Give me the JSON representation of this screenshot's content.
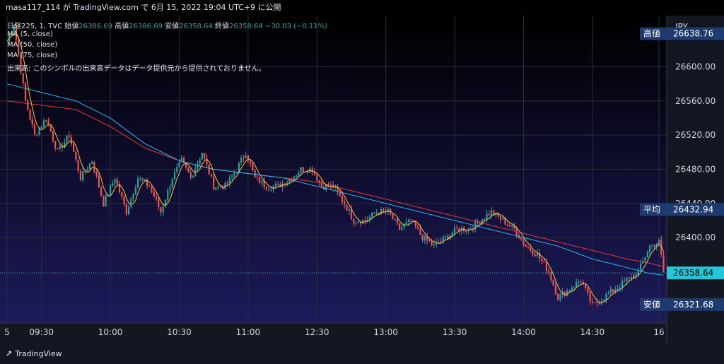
{
  "topbar": {
    "text": "masa117_114 が TradingView.com で 6月 15, 2022 19:04 UTC+9 に公開"
  },
  "legend": {
    "symbol": "日経225, 1, TVC",
    "open_label": "始値",
    "open": "26386.69",
    "high_label": "高値",
    "high": "26386.69",
    "low_label": "安値",
    "low": "26358.64",
    "close_label": "終値",
    "close": "26358.64",
    "change": "−30.03 (−0.11%)",
    "ma5": "MA (5, close)",
    "ma50": "MA (50, close)",
    "ma75": "MA (75, close)",
    "volume_note": "出来高: このシンボルの出来高データはデータ提供元から提供されておりません。"
  },
  "colors": {
    "background_top": "#000000",
    "background_bottom": "#1c1a5a",
    "up": "#26a69a",
    "down": "#ef5350",
    "ma5": "#f5c542",
    "ma50": "#29b6f6",
    "ma75": "#e53935",
    "label_bg": "#1e3a6e",
    "price_label_bg": "#26c6da"
  },
  "footer": {
    "logo": "TradingView",
    "logo_icon": "tradingview-logo-icon"
  },
  "chart_data": {
    "type": "line",
    "currency": "JPY",
    "ylim": [
      26300,
      26660
    ],
    "yticks": [
      "26600.00",
      "26560.00",
      "26520.00",
      "26480.00",
      "26440.00",
      "26400.00"
    ],
    "xticks": [
      {
        "label": "5",
        "t": 0
      },
      {
        "label": "09:30",
        "t": 15
      },
      {
        "label": "10:00",
        "t": 45
      },
      {
        "label": "10:30",
        "t": 75
      },
      {
        "label": "11:00",
        "t": 105
      },
      {
        "label": "12:30",
        "t": 135
      },
      {
        "label": "13:00",
        "t": 165
      },
      {
        "label": "13:30",
        "t": 195
      },
      {
        "label": "14:00",
        "t": 225
      },
      {
        "label": "14:30",
        "t": 255
      },
      {
        "label": "16",
        "t": 284
      }
    ],
    "price_key_points": [
      [
        0,
        26630
      ],
      [
        3,
        26650
      ],
      [
        8,
        26560
      ],
      [
        12,
        26520
      ],
      [
        17,
        26540
      ],
      [
        22,
        26500
      ],
      [
        27,
        26520
      ],
      [
        32,
        26470
      ],
      [
        37,
        26490
      ],
      [
        42,
        26440
      ],
      [
        47,
        26470
      ],
      [
        52,
        26430
      ],
      [
        57,
        26470
      ],
      [
        62,
        26460
      ],
      [
        67,
        26430
      ],
      [
        72,
        26470
      ],
      [
        76,
        26490
      ],
      [
        80,
        26470
      ],
      [
        85,
        26500
      ],
      [
        90,
        26460
      ],
      [
        95,
        26460
      ],
      [
        100,
        26480
      ],
      [
        104,
        26500
      ],
      [
        108,
        26470
      ],
      [
        113,
        26460
      ],
      [
        118,
        26460
      ],
      [
        124,
        26470
      ],
      [
        128,
        26480
      ],
      [
        133,
        26480
      ],
      [
        137,
        26460
      ],
      [
        142,
        26460
      ],
      [
        147,
        26440
      ],
      [
        151,
        26420
      ],
      [
        156,
        26420
      ],
      [
        161,
        26430
      ],
      [
        166,
        26430
      ],
      [
        171,
        26410
      ],
      [
        176,
        26420
      ],
      [
        181,
        26400
      ],
      [
        186,
        26390
      ],
      [
        191,
        26400
      ],
      [
        196,
        26410
      ],
      [
        201,
        26410
      ],
      [
        206,
        26420
      ],
      [
        211,
        26430
      ],
      [
        216,
        26420
      ],
      [
        221,
        26410
      ],
      [
        226,
        26390
      ],
      [
        231,
        26380
      ],
      [
        236,
        26360
      ],
      [
        240,
        26330
      ],
      [
        245,
        26340
      ],
      [
        250,
        26350
      ],
      [
        255,
        26320
      ],
      [
        260,
        26330
      ],
      [
        265,
        26340
      ],
      [
        270,
        26350
      ],
      [
        275,
        26360
      ],
      [
        280,
        26390
      ],
      [
        284,
        26395
      ],
      [
        286,
        26360
      ]
    ],
    "ma50_key_points": [
      [
        0,
        26580
      ],
      [
        15,
        26570
      ],
      [
        30,
        26560
      ],
      [
        45,
        26540
      ],
      [
        60,
        26510
      ],
      [
        75,
        26490
      ],
      [
        90,
        26480
      ],
      [
        105,
        26475
      ],
      [
        120,
        26470
      ],
      [
        135,
        26460
      ],
      [
        150,
        26450
      ],
      [
        165,
        26440
      ],
      [
        180,
        26430
      ],
      [
        195,
        26420
      ],
      [
        210,
        26410
      ],
      [
        225,
        26400
      ],
      [
        240,
        26390
      ],
      [
        255,
        26375
      ],
      [
        270,
        26365
      ],
      [
        280,
        26358
      ],
      [
        286,
        26356
      ]
    ],
    "ma75_key_points": [
      [
        0,
        26560
      ],
      [
        15,
        26555
      ],
      [
        30,
        26550
      ],
      [
        45,
        26530
      ],
      [
        60,
        26505
      ],
      [
        75,
        26490
      ],
      [
        90,
        26480
      ],
      [
        105,
        26475
      ],
      [
        120,
        26470
      ],
      [
        135,
        26465
      ],
      [
        150,
        26455
      ],
      [
        165,
        26445
      ],
      [
        180,
        26435
      ],
      [
        195,
        26425
      ],
      [
        210,
        26415
      ],
      [
        225,
        26405
      ],
      [
        240,
        26395
      ],
      [
        255,
        26385
      ],
      [
        270,
        26375
      ],
      [
        280,
        26370
      ],
      [
        286,
        26366
      ]
    ],
    "axis_labels": {
      "high_label": "高値",
      "high_value": "26638.76",
      "avg_label": "平均",
      "avg_value": "26432.94",
      "last_value": "26358.64",
      "low_label": "安値",
      "low_value": "26321.68"
    },
    "grid": true,
    "legend_position": "top-left"
  }
}
